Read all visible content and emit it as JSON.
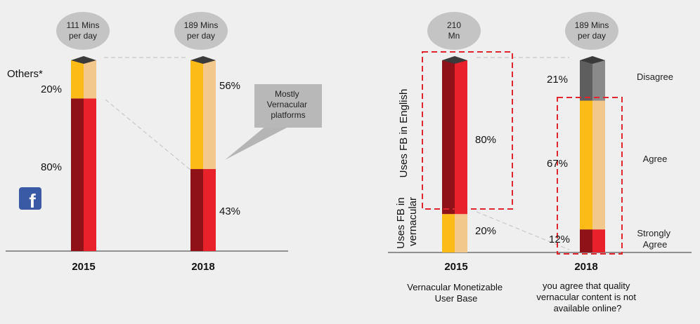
{
  "colors": {
    "red_front": "#e8212a",
    "red_side": "#8f1219",
    "yellow_front": "#fdbb17",
    "yellow_side": "#f2c88c",
    "gray_front": "#5e5e5e",
    "gray_side": "#8a8a8a",
    "cap": "#3a3a3a",
    "bubble": "#c4c4c4",
    "dashed_box": "#e0262c"
  },
  "icons": {
    "facebook": "facebook-icon"
  },
  "chart_data": [
    {
      "type": "bar",
      "stacked": true,
      "categories": [
        "2015",
        "2018"
      ],
      "series": [
        {
          "name": "",
          "values": [
            80,
            43
          ]
        },
        {
          "name": "Others*",
          "values": [
            20,
            56
          ]
        }
      ],
      "bubbles": [
        "111 Mins\nper day",
        "189 Mins\nper day"
      ],
      "value_labels": {
        "2015": [
          "80%",
          "20%"
        ],
        "2018": [
          "43%",
          "56%"
        ]
      },
      "callout": "Mostly\nVernacular\nplatforms"
    },
    {
      "type": "bar",
      "stacked": true,
      "categories": [
        "2015"
      ],
      "series": [
        {
          "name": "Uses FB in English",
          "values": [
            80
          ]
        },
        {
          "name": "Uses FB in vernacular",
          "values": [
            20
          ]
        }
      ],
      "bubble": "210\nMn",
      "value_labels": [
        "80%",
        "20%"
      ],
      "xcaption": "Vernacular Monetizable\nUser Base"
    },
    {
      "type": "bar",
      "stacked": true,
      "categories": [
        "2018"
      ],
      "series": [
        {
          "name": "Strongly Agree",
          "values": [
            12
          ]
        },
        {
          "name": "Agree",
          "values": [
            67
          ]
        },
        {
          "name": "Disagree",
          "values": [
            21
          ]
        }
      ],
      "bubble": "189 Mins\nper day",
      "value_labels": [
        "12%",
        "67%",
        "21%"
      ],
      "xcaption": "you agree that quality\nvernacular content is not\navailable online?"
    }
  ]
}
